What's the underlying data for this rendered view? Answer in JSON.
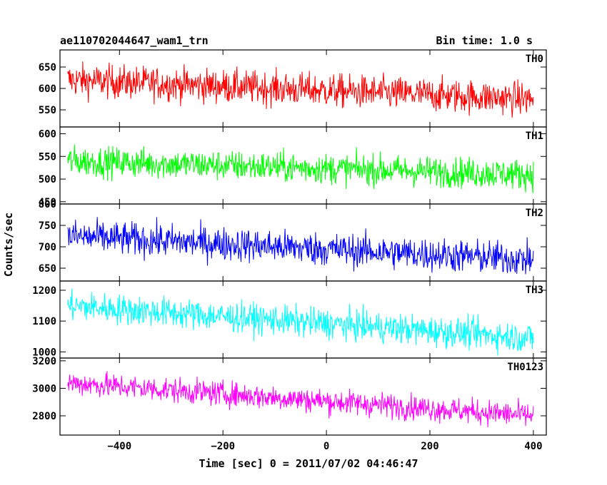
{
  "header": {
    "title": "ae110702044647_wam1_trn",
    "bin_time": "Bin time: 1.0 s"
  },
  "axes": {
    "ylabel": "Counts/sec",
    "xlabel": "Time [sec] 0 = 2011/07/02 04:46:47"
  },
  "chart_data": {
    "type": "line",
    "xlim": [
      -515,
      425
    ],
    "x_range": [
      -500,
      400
    ],
    "x_ticks": [
      -400,
      -200,
      0,
      200,
      400
    ],
    "x_tick_labels": [
      "−400",
      "−200",
      "0",
      "200",
      "400"
    ],
    "grid": false,
    "panels": [
      {
        "name": "TH0",
        "color": "#ff0000",
        "ylim": [
          510,
          690
        ],
        "y_ticks": [
          550,
          600,
          650
        ],
        "y_tick_labels": [
          "550",
          "600",
          "650"
        ],
        "start": 620,
        "end": 575,
        "spread": 28
      },
      {
        "name": "TH1",
        "color": "#00ff00",
        "ylim": [
          445,
          615
        ],
        "y_ticks": [
          450,
          500,
          550,
          600
        ],
        "y_tick_labels": [
          "450",
          "500",
          "550",
          "600"
        ],
        "start": 540,
        "end": 510,
        "spread": 24
      },
      {
        "name": "TH2",
        "color": "#0000ff",
        "ylim": [
          620,
          800
        ],
        "y_ticks": [
          650,
          700,
          750,
          800
        ],
        "y_tick_labels": [
          "650",
          "700",
          "750",
          "800"
        ],
        "start": 725,
        "end": 670,
        "spread": 28
      },
      {
        "name": "TH3",
        "color": "#00ffff",
        "ylim": [
          980,
          1230
        ],
        "y_ticks": [
          1000,
          1100,
          1200
        ],
        "y_tick_labels": [
          "1000",
          "1100",
          "1200"
        ],
        "start": 1150,
        "end": 1045,
        "spread": 35
      },
      {
        "name": "TH0123",
        "color": "#ff00ff",
        "ylim": [
          2660,
          3220
        ],
        "y_ticks": [
          2800,
          3000,
          3200
        ],
        "y_tick_labels": [
          "2800",
          "3000",
          "3200"
        ],
        "start": 3040,
        "end": 2800,
        "spread": 65
      }
    ]
  }
}
